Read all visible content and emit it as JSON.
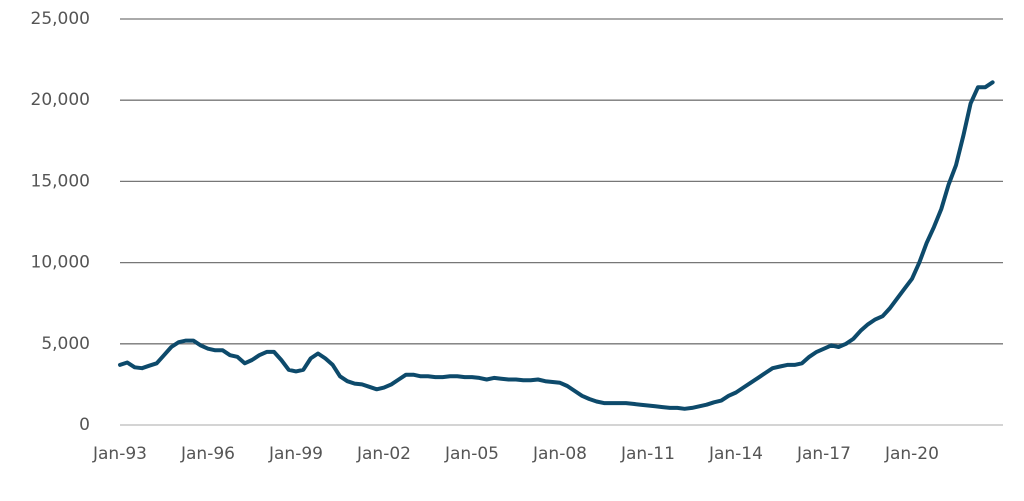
{
  "chart_data": {
    "type": "line",
    "color": "#0d4a6b",
    "grid": true,
    "categories": [
      "Jan-93",
      null,
      null,
      null,
      null,
      null,
      null,
      null,
      null,
      null,
      null,
      null,
      "Jan-96",
      null,
      null,
      null,
      null,
      null,
      null,
      null,
      null,
      null,
      null,
      null,
      "Jan-99",
      null,
      null,
      null,
      null,
      null,
      null,
      null,
      null,
      null,
      null,
      null,
      "Jan-02",
      null,
      null,
      null,
      null,
      null,
      null,
      null,
      null,
      null,
      null,
      null,
      "Jan-05",
      null,
      null,
      null,
      null,
      null,
      null,
      null,
      null,
      null,
      null,
      null,
      "Jan-08",
      null,
      null,
      null,
      null,
      null,
      null,
      null,
      null,
      null,
      null,
      null,
      "Jan-11",
      null,
      null,
      null,
      null,
      null,
      null,
      null,
      null,
      null,
      null,
      null,
      "Jan-14",
      null,
      null,
      null,
      null,
      null,
      null,
      null,
      null,
      null,
      null,
      null,
      "Jan-17",
      null,
      null,
      null,
      null,
      null,
      null,
      null,
      null,
      null,
      null,
      null,
      "Jan-20",
      null,
      null,
      null,
      null,
      null,
      null,
      null,
      null,
      null,
      null,
      null
    ],
    "values": [
      3700,
      3850,
      3550,
      3500,
      3650,
      3800,
      4300,
      4800,
      5100,
      5200,
      5200,
      4900,
      4700,
      4600,
      4600,
      4300,
      4200,
      3800,
      4000,
      4300,
      4500,
      4500,
      4000,
      3400,
      3300,
      3400,
      4100,
      4400,
      4100,
      3700,
      3000,
      2700,
      2550,
      2500,
      2350,
      2200,
      2300,
      2500,
      2800,
      3100,
      3100,
      3000,
      3000,
      2950,
      2950,
      3000,
      3000,
      2950,
      2950,
      2900,
      2800,
      2900,
      2850,
      2800,
      2800,
      2750,
      2750,
      2800,
      2700,
      2650,
      2600,
      2400,
      2100,
      1800,
      1600,
      1450,
      1350,
      1350,
      1350,
      1350,
      1300,
      1250,
      1200,
      1150,
      1100,
      1050,
      1050,
      1000,
      1050,
      1150,
      1250,
      1400,
      1500,
      1800,
      2000,
      2300,
      2600,
      2900,
      3200,
      3500,
      3600,
      3700,
      3700,
      3800,
      4200,
      4500,
      4700,
      4900,
      4800,
      5000,
      5300,
      5800,
      6200,
      6500,
      6700,
      7200,
      7800,
      8400,
      9000,
      10000,
      11200,
      12200,
      13300,
      14800,
      16000,
      17800,
      19800,
      20800,
      20800,
      21100
    ],
    "ylim": [
      0,
      25000
    ],
    "yticks": [
      0,
      {
        "value": 5000,
        "label": "5,000"
      },
      {
        "value": 10000,
        "label": "10,000"
      },
      {
        "value": 15000,
        "label": "15,000"
      },
      {
        "value": 20000,
        "label": "20,000"
      },
      {
        "value": 25000,
        "label": "25,000"
      }
    ]
  }
}
